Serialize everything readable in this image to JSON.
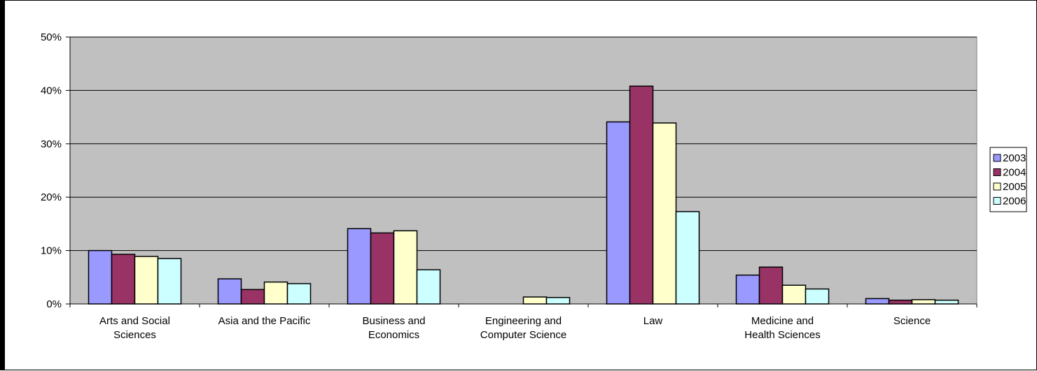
{
  "chart_data": {
    "type": "bar",
    "title": "",
    "xlabel": "",
    "ylabel": "",
    "ylim": [
      0,
      0.5
    ],
    "yticks": [
      "0%",
      "10%",
      "20%",
      "30%",
      "40%",
      "50%"
    ],
    "grid": true,
    "legend_position": "right",
    "plot_background": "#c0c0c0",
    "categories": [
      [
        "Arts and Social",
        "Sciences"
      ],
      [
        "Asia and the Pacific"
      ],
      [
        "Business and",
        "Economics"
      ],
      [
        "Engineering and",
        "Computer Science"
      ],
      [
        "Law"
      ],
      [
        "Medicine and",
        "Health Sciences"
      ],
      [
        "Science"
      ]
    ],
    "series": [
      {
        "name": "2003",
        "color": "#9999ff",
        "values": [
          0.1,
          0.047,
          0.141,
          0.0,
          0.341,
          0.054,
          0.01
        ]
      },
      {
        "name": "2004",
        "color": "#993366",
        "values": [
          0.093,
          0.027,
          0.133,
          0.0,
          0.408,
          0.069,
          0.007
        ]
      },
      {
        "name": "2005",
        "color": "#ffffcc",
        "values": [
          0.089,
          0.041,
          0.137,
          0.013,
          0.339,
          0.035,
          0.008
        ]
      },
      {
        "name": "2006",
        "color": "#ccffff",
        "values": [
          0.085,
          0.038,
          0.064,
          0.012,
          0.173,
          0.028,
          0.007
        ]
      }
    ]
  }
}
